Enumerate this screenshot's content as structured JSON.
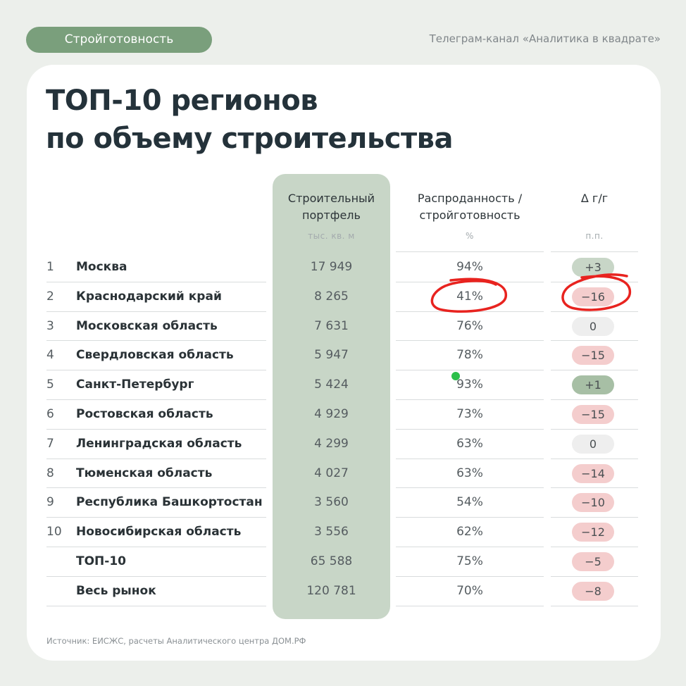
{
  "tag": "Стройготовность",
  "channel": "Телеграм-канал «Аналитика в квадрате»",
  "title_line1": "ТОП-10 регионов",
  "title_line2": "по объему строительства",
  "columns": {
    "portfolio_l1": "Строительный",
    "portfolio_l2": "портфель",
    "portfolio_unit": "тыс. кв. м",
    "sold_l1": "Распроданность /",
    "sold_l2": "стройготовность",
    "sold_unit": "%",
    "delta": "Δ г/г",
    "delta_unit": "п.п."
  },
  "colors": {
    "positive": "#c8d6c7",
    "positive_strong": "#a7bfa5",
    "negative": "#f4cdcd",
    "neutral": "#eeeeee",
    "annotation": "#e8231f"
  },
  "rows": [
    {
      "num": "1",
      "region": "Москва",
      "portfolio": "17 949",
      "sold": "94%",
      "delta": "+3",
      "tone": "positive"
    },
    {
      "num": "2",
      "region": "Краснодарский край",
      "portfolio": "8 265",
      "sold": "41%",
      "delta": "−16",
      "tone": "negative"
    },
    {
      "num": "3",
      "region": "Московская область",
      "portfolio": "7 631",
      "sold": "76%",
      "delta": "0",
      "tone": "neutral"
    },
    {
      "num": "4",
      "region": "Свердловская область",
      "portfolio": "5 947",
      "sold": "78%",
      "delta": "−15",
      "tone": "negative"
    },
    {
      "num": "5",
      "region": "Санкт-Петербург",
      "portfolio": "5 424",
      "sold": "93%",
      "delta": "+1",
      "tone": "positive_strong"
    },
    {
      "num": "6",
      "region": "Ростовская область",
      "portfolio": "4 929",
      "sold": "73%",
      "delta": "−15",
      "tone": "negative"
    },
    {
      "num": "7",
      "region": "Ленинградская область",
      "portfolio": "4 299",
      "sold": "63%",
      "delta": "0",
      "tone": "neutral"
    },
    {
      "num": "8",
      "region": "Тюменская область",
      "portfolio": "4 027",
      "sold": "63%",
      "delta": "−14",
      "tone": "negative"
    },
    {
      "num": "9",
      "region": "Республика Башкортостан",
      "portfolio": "3 560",
      "sold": "54%",
      "delta": "−10",
      "tone": "negative"
    },
    {
      "num": "10",
      "region": "Новосибирская область",
      "portfolio": "3 556",
      "sold": "62%",
      "delta": "−12",
      "tone": "negative"
    },
    {
      "num": "",
      "region": "ТОП-10",
      "portfolio": "65 588",
      "sold": "75%",
      "delta": "−5",
      "tone": "negative"
    },
    {
      "num": "",
      "region": "Весь рынок",
      "portfolio": "120 781",
      "sold": "70%",
      "delta": "−8",
      "tone": "negative"
    }
  ],
  "source": "Источник: ЕИСЖС, расчеты Аналитического центра ДОМ.РФ"
}
